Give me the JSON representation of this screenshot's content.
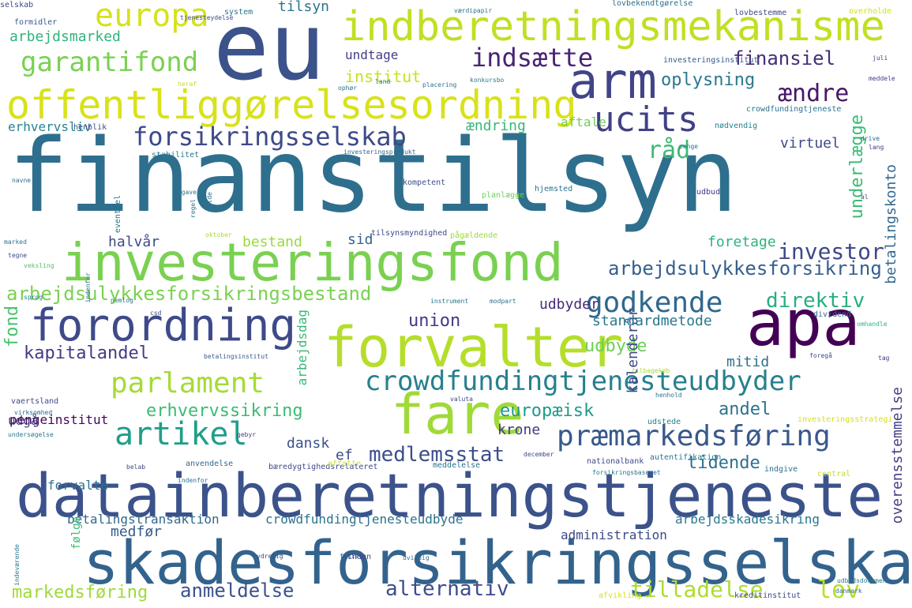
{
  "words": [
    {
      "text": "finanstilsyn",
      "color": "#2e6f8e"
    },
    {
      "text": "datainberetningstjeneste",
      "color": "#3b528b"
    },
    {
      "text": "skadesforsikringsselskab",
      "color": "#33638d"
    },
    {
      "text": "investeringsfond",
      "color": "#7ad151"
    },
    {
      "text": "indberetningsmekanisme",
      "color": "#c2df23"
    },
    {
      "text": "offentliggørelsesordning",
      "color": "#d8e219"
    },
    {
      "text": "eu",
      "color": "#3b528b"
    },
    {
      "text": "forvalter",
      "color": "#b5de2b"
    },
    {
      "text": "fare",
      "color": "#a0da39"
    },
    {
      "text": "apa",
      "color": "#440154"
    },
    {
      "text": "forordning",
      "color": "#3e4a89"
    },
    {
      "text": "arm",
      "color": "#414487"
    },
    {
      "text": "crowdfundingtjenesteudbyder",
      "color": "#27808e"
    },
    {
      "text": "præmarkedsføring",
      "color": "#38598c"
    },
    {
      "text": "forsikringsselskab",
      "color": "#3e4989"
    },
    {
      "text": "parlament",
      "color": "#a5db36"
    },
    {
      "text": "artikel",
      "color": "#1f9e89"
    },
    {
      "text": "godkende",
      "color": "#31688e"
    },
    {
      "text": "europa",
      "color": "#d5e21a"
    },
    {
      "text": "ucits",
      "color": "#424186"
    },
    {
      "text": "garantifond",
      "color": "#7ad151"
    },
    {
      "text": "indsætte",
      "color": "#482475"
    },
    {
      "text": "finansiel",
      "color": "#472c7a"
    },
    {
      "text": "ændre",
      "color": "#481668"
    },
    {
      "text": "investor",
      "color": "#3f4788"
    },
    {
      "text": "arbejdsulykkesforsikring",
      "color": "#355f8d"
    },
    {
      "text": "arbejdsulykkesforsikringsbestand",
      "color": "#7ad151"
    },
    {
      "text": "anmeldelse",
      "color": "#3b528b"
    },
    {
      "text": "alternativ",
      "color": "#3e4c8a"
    },
    {
      "text": "tilladelse",
      "color": "#addc30"
    },
    {
      "text": "lov",
      "color": "#bade28"
    },
    {
      "text": "markedsføring",
      "color": "#9fda3a"
    },
    {
      "text": "medlemsstat",
      "color": "#3d4e8a"
    },
    {
      "text": "erhvervssikring",
      "color": "#3bbb75"
    },
    {
      "text": "kapitalandel",
      "color": "#443a83"
    },
    {
      "text": "direktiv",
      "color": "#28ae80"
    },
    {
      "text": "udbyde",
      "color": "#6ece58"
    },
    {
      "text": "union",
      "color": "#443983"
    },
    {
      "text": "europæisk",
      "color": "#1f9a8a"
    },
    {
      "text": "tidende",
      "color": "#2c728e"
    },
    {
      "text": "oplysning",
      "color": "#2a788e"
    },
    {
      "text": "råd",
      "color": "#3bbb75"
    },
    {
      "text": "virtuel",
      "color": "#3e4a89"
    },
    {
      "text": "underlægge",
      "color": "#3bbb75"
    },
    {
      "text": "tilsyn",
      "color": "#2c728e"
    },
    {
      "text": "institut",
      "color": "#c8e020"
    },
    {
      "text": "arbejdsmarked",
      "color": "#2fb47c"
    },
    {
      "text": "erhvervsliv",
      "color": "#25858e"
    },
    {
      "text": "undtage",
      "color": "#433e85"
    },
    {
      "text": "ændring",
      "color": "#35b779"
    },
    {
      "text": "aftale",
      "color": "#6ece58"
    },
    {
      "text": "halvår",
      "color": "#3e4a89"
    },
    {
      "text": "bestand",
      "color": "#9bd93c"
    },
    {
      "text": "sid",
      "color": "#33638d"
    },
    {
      "text": "foretage",
      "color": "#2db27d"
    },
    {
      "text": "kalenderår",
      "color": "#3f4788"
    },
    {
      "text": "betalingskonto",
      "color": "#31688e"
    },
    {
      "text": "standardmetode",
      "color": "#2a788e"
    },
    {
      "text": "mitid",
      "color": "#2c728e"
    },
    {
      "text": "andel",
      "color": "#2c728e"
    },
    {
      "text": "krone",
      "color": "#443a83"
    },
    {
      "text": "dansk",
      "color": "#3b528b"
    },
    {
      "text": "ef",
      "color": "#3e4a89"
    },
    {
      "text": "udbyder",
      "color": "#482878"
    },
    {
      "text": "fond",
      "color": "#4ac16d"
    },
    {
      "text": "arbejdsdag",
      "color": "#37b878"
    },
    {
      "text": "udgå",
      "color": "#424086"
    },
    {
      "text": "pengeinstitut",
      "color": "#450559"
    },
    {
      "text": "forvalte",
      "color": "#2c728e"
    },
    {
      "text": "betalingstransaktion",
      "color": "#31688e"
    },
    {
      "text": "crowdfundingtjenesteudbyde",
      "color": "#2c728e"
    },
    {
      "text": "arbejdsskadesikring",
      "color": "#2a788e"
    },
    {
      "text": "administration",
      "color": "#3e4989"
    },
    {
      "text": "overensstemmelse",
      "color": "#433e85"
    },
    {
      "text": "medfør",
      "color": "#365c8d"
    },
    {
      "text": "følge",
      "color": "#3bbb75"
    },
    {
      "text": "udstede",
      "color": "#27808e"
    },
    {
      "text": "system",
      "color": "#2c728e"
    },
    {
      "text": "formidler",
      "color": "#38598c"
    },
    {
      "text": "lovbekendtgørelse",
      "color": "#2c728e"
    },
    {
      "text": "lovbestemme",
      "color": "#3e4a89"
    },
    {
      "text": "overholde",
      "color": "#d2e21b"
    },
    {
      "text": "investeringsinstitut",
      "color": "#38598c"
    },
    {
      "text": "juli",
      "color": "#3f4788"
    },
    {
      "text": "meddele",
      "color": "#433e85"
    },
    {
      "text": "crowdfundingtjeneste",
      "color": "#2c728e"
    },
    {
      "text": "nødvendig",
      "color": "#26828e"
    },
    {
      "text": "penge",
      "color": "#2c728e"
    },
    {
      "text": "lang",
      "color": "#443a83"
    },
    {
      "text": "stabilitet",
      "color": "#2a788e"
    },
    {
      "text": "investeringsprodukt",
      "color": "#31688e"
    },
    {
      "text": "kompetent",
      "color": "#3b528b"
    },
    {
      "text": "hjemsted",
      "color": "#2c728e"
    },
    {
      "text": "planlægge",
      "color": "#6ece58"
    },
    {
      "text": "udbud",
      "color": "#453581"
    },
    {
      "text": "al",
      "color": "#3e4a89"
    },
    {
      "text": "tilsynsmyndighed",
      "color": "#3e4989"
    },
    {
      "text": "pågældende",
      "color": "#9bd93c"
    },
    {
      "text": "oktober",
      "color": "#a8db34"
    },
    {
      "text": "marked",
      "color": "#2c728e"
    },
    {
      "text": "tegne",
      "color": "#3e4a89"
    },
    {
      "text": "veksling",
      "color": "#4ac16d"
    },
    {
      "text": "sprog",
      "color": "#27808e"
    },
    {
      "text": "nemlog",
      "color": "#2a788e"
    },
    {
      "text": "instrument",
      "color": "#2a788e"
    },
    {
      "text": "modpart",
      "color": "#2c728e"
    },
    {
      "text": "csd",
      "color": "#3e4a89"
    },
    {
      "text": "dividend",
      "color": "#31688e"
    },
    {
      "text": "omhandle",
      "color": "#2db27d"
    },
    {
      "text": "betalingsinstitut",
      "color": "#38598c"
    },
    {
      "text": "foregå",
      "color": "#3e4a89"
    },
    {
      "text": "tilbagekøb",
      "color": "#a8db34"
    },
    {
      "text": "tag",
      "color": "#443a83"
    },
    {
      "text": "vaertsland",
      "color": "#3e4a89"
    },
    {
      "text": "virksomhed",
      "color": "#31688e"
    },
    {
      "text": "undersøgelse",
      "color": "#2a788e"
    },
    {
      "text": "gebyr",
      "color": "#433e85"
    },
    {
      "text": "valuta",
      "color": "#3e4a89"
    },
    {
      "text": "henhold",
      "color": "#2c728e"
    },
    {
      "text": "investeringsstrategi",
      "color": "#d8e219"
    },
    {
      "text": "december",
      "color": "#3e4a89"
    },
    {
      "text": "anvendelse",
      "color": "#31688e"
    },
    {
      "text": "nationalbank",
      "color": "#3e4a89"
    },
    {
      "text": "autentifikation",
      "color": "#2a788e"
    },
    {
      "text": "bæredygtighedsrelateret",
      "color": "#3e4a89"
    },
    {
      "text": "forsikringsbaseret",
      "color": "#2c728e"
    },
    {
      "text": "indgive",
      "color": "#2c728e"
    },
    {
      "text": "central",
      "color": "#c8e020"
    },
    {
      "text": "affatte",
      "color": "#d8e219"
    },
    {
      "text": "belab",
      "color": "#3e4a89"
    },
    {
      "text": "indenfor",
      "color": "#2c728e"
    },
    {
      "text": "meddelelse",
      "color": "#2c728e"
    },
    {
      "text": "inden",
      "color": "#3e4a89"
    },
    {
      "text": "ydrelig",
      "color": "#3e4a89"
    },
    {
      "text": "filial",
      "color": "#3e4a89"
    },
    {
      "text": "uvildig",
      "color": "#2c728e"
    },
    {
      "text": "afvikling",
      "color": "#d8e219"
    },
    {
      "text": "kreditinstitut",
      "color": "#3e4a89"
    },
    {
      "text": "udbudsdokument",
      "color": "#2a788e"
    },
    {
      "text": "danmark",
      "color": "#2c728e"
    },
    {
      "text": "tjenesteydelse",
      "color": "#3e4a89"
    },
    {
      "text": "selskab",
      "color": "#3e4a89"
    },
    {
      "text": "værdipapir",
      "color": "#2c728e"
    },
    {
      "text": "drive",
      "color": "#31688e"
    },
    {
      "text": "land",
      "color": "#2a788e"
    },
    {
      "text": "placering",
      "color": "#2c728e"
    },
    {
      "text": "heraf",
      "color": "#c8e020"
    },
    {
      "text": "ophør",
      "color": "#2c728e"
    },
    {
      "text": "opgave",
      "color": "#2c728e"
    },
    {
      "text": "navne",
      "color": "#2c728e"
    },
    {
      "text": "henblik",
      "color": "#3e4a89"
    },
    {
      "text": "eventuel",
      "color": "#2c728e"
    },
    {
      "text": "gælde",
      "color": "#2c728e"
    },
    {
      "text": "regel",
      "color": "#2c728e"
    },
    {
      "text": "indenfor",
      "color": "#2c728e"
    },
    {
      "text": "konkursbo",
      "color": "#2a788e"
    },
    {
      "text": "indeværende",
      "color": "#2a788e"
    }
  ]
}
